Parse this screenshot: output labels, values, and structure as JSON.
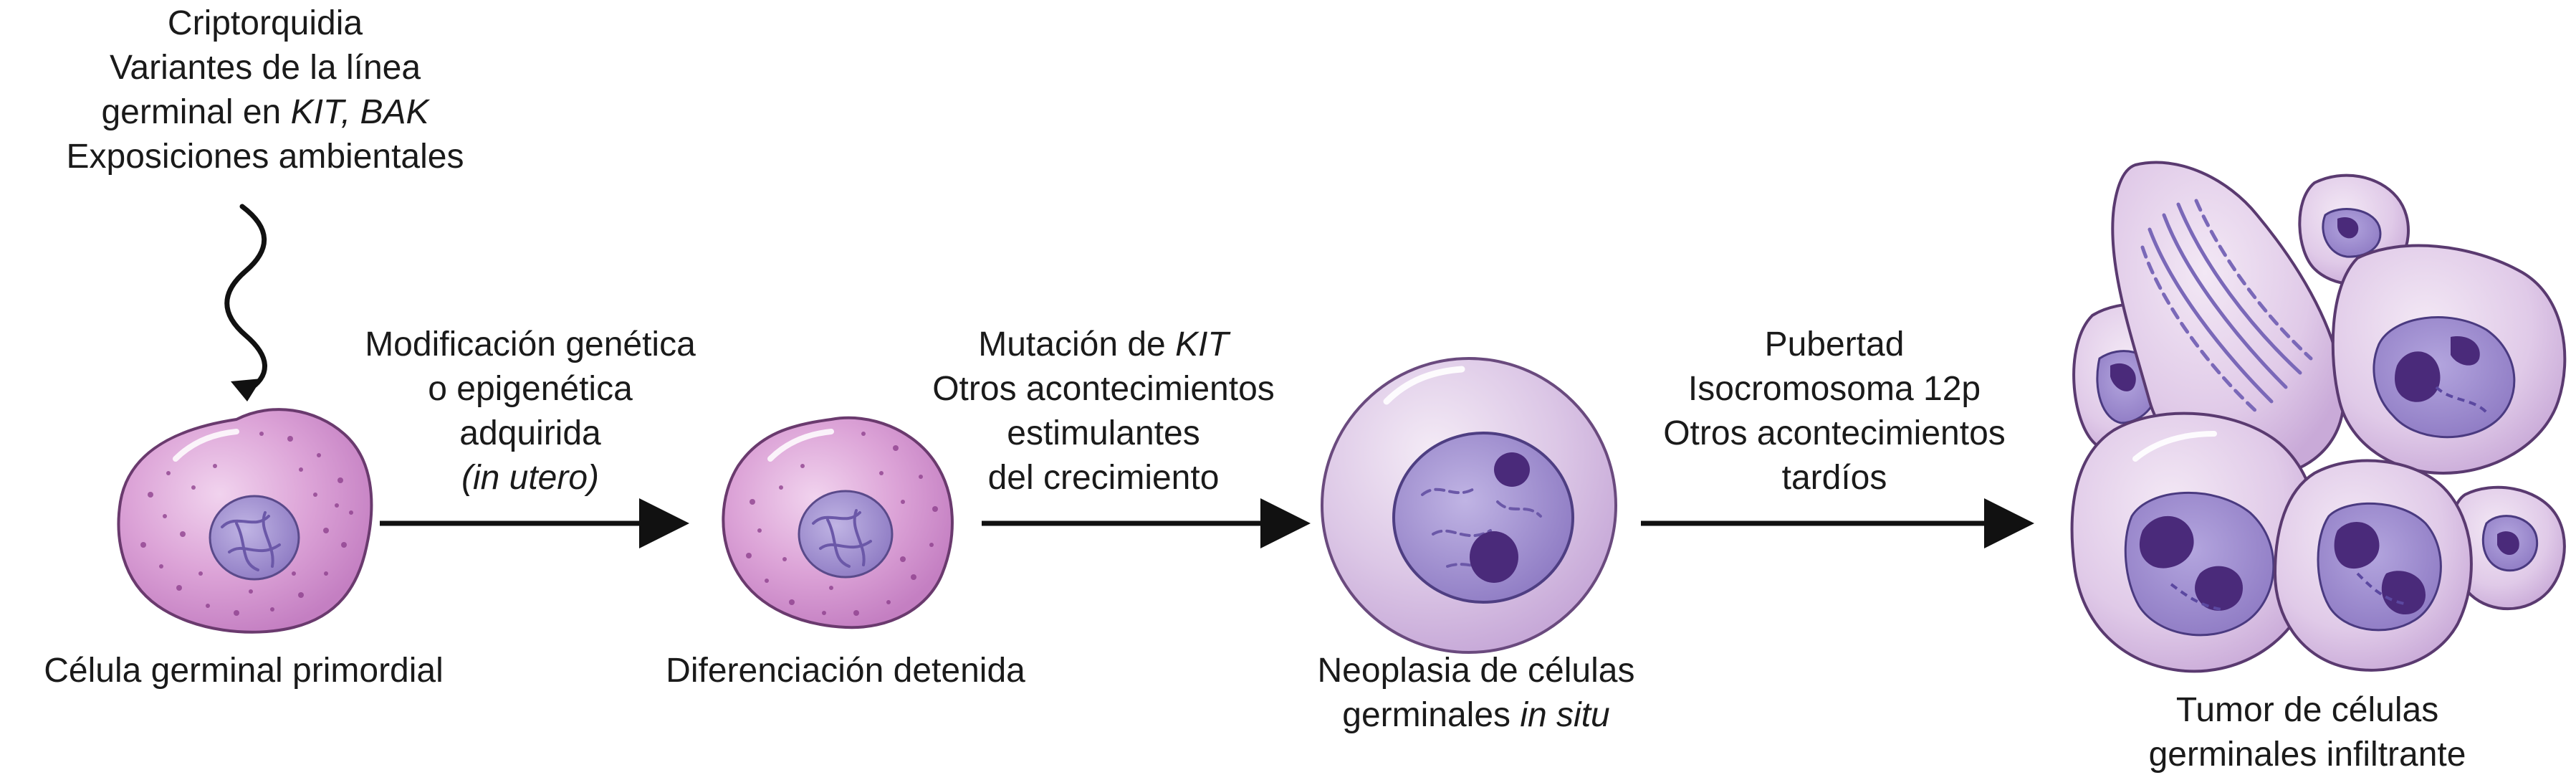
{
  "risk_factors": {
    "line1": "Criptorquidia",
    "line2": "Variantes de la línea",
    "line3_a": "germinal en ",
    "line3_b": "KIT, BAK",
    "line4": "Exposiciones ambientales"
  },
  "step1": {
    "line1": "Modificación genética",
    "line2": "o epigenética",
    "line3": "adquirida",
    "line4": "(in utero)"
  },
  "step2": {
    "line1_a": "Mutación de ",
    "line1_b": "KIT",
    "line2": "Otros acontecimientos",
    "line3": "estimulantes",
    "line4": "del crecimiento"
  },
  "step3": {
    "line1": "Pubertad",
    "line2": "Isocromosoma 12p",
    "line3": "Otros acontecimientos",
    "line4": "tardíos"
  },
  "stages": {
    "stage1": "Célula germinal primordial",
    "stage2": "Diferenciación detenida",
    "stage3_line1": "Neoplasia de células",
    "stage3_line2_a": "germinales ",
    "stage3_line2_b": "in situ",
    "stage4_line1": "Tumor de células",
    "stage4_line2": "germinales infiltrante"
  },
  "colors": {
    "primordial_cytoplasm": "#d49ad0",
    "nucleus": "#9d8ccd",
    "neoplasia_cytoplasm": "#dcc6e6",
    "tumor_cytoplasm": "#e2cde8",
    "nucleolus": "#4a2a7a",
    "outline": "#5a3a70",
    "arrow": "#111111"
  }
}
